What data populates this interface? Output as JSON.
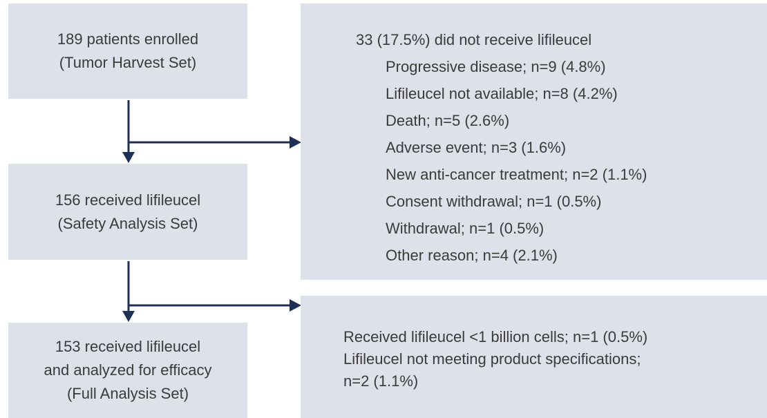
{
  "nodes": [
    {
      "lines": [
        "189 patients enrolled",
        "(Tumor Harvest Set)"
      ]
    },
    {
      "lines": [
        "156 received lifileucel",
        "(Safety Analysis Set)"
      ]
    },
    {
      "lines": [
        "153 received lifileucel",
        "and analyzed for efficacy",
        "(Full Analysis Set)"
      ]
    }
  ],
  "exclusions": [
    {
      "header": "33 (17.5%) did not receive lifileucel",
      "items": [
        "Progressive disease; n=9 (4.8%)",
        "Lifileucel not available; n=8 (4.2%)",
        "Death; n=5 (2.6%)",
        "Adverse event; n=3 (1.6%)",
        "New anti-cancer treatment; n=2 (1.1%)",
        "Consent withdrawal; n=1 (0.5%)",
        "Withdrawal; n=1 (0.5%)",
        "Other reason; n=4 (2.1%)"
      ]
    },
    {
      "items": [
        "Received lifileucel <1 billion cells; n=1 (0.5%)",
        "Lifileucel not meeting product specifications;",
        "n=2 (1.1%)"
      ]
    }
  ]
}
